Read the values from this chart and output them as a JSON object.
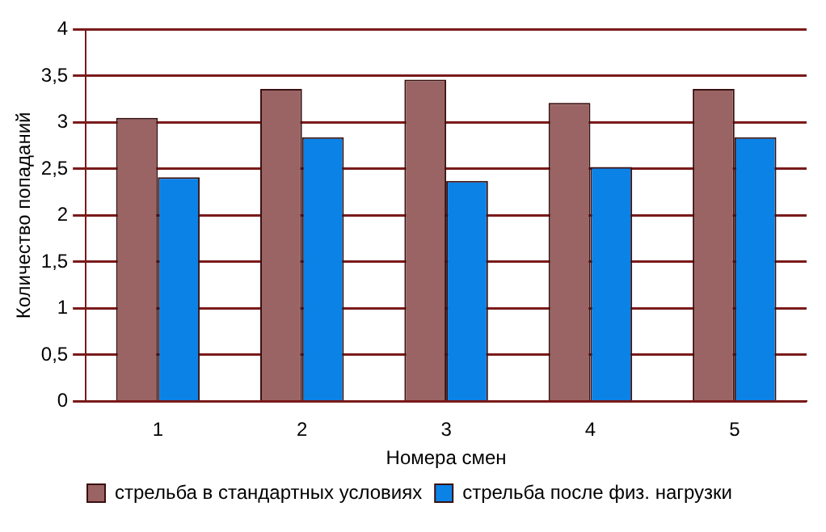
{
  "chart_data": {
    "type": "bar",
    "xlabel": "Номера смен",
    "ylabel": "Количество попаданий",
    "categories": [
      "1",
      "2",
      "3",
      "4",
      "5"
    ],
    "series": [
      {
        "name": "стрельба в стандартных условиях",
        "color": "#9a6464",
        "values": [
          3.05,
          3.36,
          3.46,
          3.21,
          3.36
        ]
      },
      {
        "name": "стрельба после физ. нагрузки",
        "color": "#0a82e6",
        "values": [
          2.41,
          2.84,
          2.37,
          2.52,
          2.84
        ]
      }
    ],
    "ylim": [
      0,
      4
    ],
    "yticks": [
      {
        "value": 0,
        "label": "0"
      },
      {
        "value": 0.5,
        "label": "0,5"
      },
      {
        "value": 1,
        "label": "1"
      },
      {
        "value": 1.5,
        "label": "1,5"
      },
      {
        "value": 2,
        "label": "2"
      },
      {
        "value": 2.5,
        "label": "2,5"
      },
      {
        "value": 3,
        "label": "3"
      },
      {
        "value": 3.5,
        "label": "3,5"
      },
      {
        "value": 4,
        "label": "4"
      }
    ],
    "grid": "y",
    "legend": "bottom"
  }
}
